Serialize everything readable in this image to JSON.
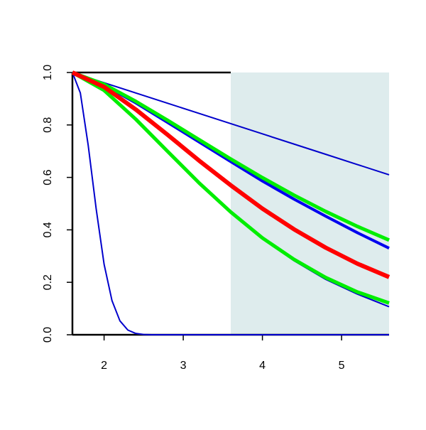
{
  "chart_data": {
    "type": "line",
    "x": [
      1.6,
      2.0,
      2.4,
      2.8,
      3.2,
      3.6,
      4.0,
      4.4,
      4.8,
      5.2,
      5.6
    ],
    "xlim": [
      1.6,
      5.6
    ],
    "xticks": [
      2,
      3,
      4,
      5
    ],
    "ylim": [
      0,
      1
    ],
    "yticks": [
      {
        "value": 0,
        "label": "0.0"
      },
      {
        "value": 0.2,
        "label": "0.2"
      },
      {
        "value": 0.4,
        "label": "0.4"
      },
      {
        "value": 0.6,
        "label": "0.6"
      },
      {
        "value": 0.8,
        "label": "0.8"
      },
      {
        "value": 1,
        "label": "1.0"
      }
    ],
    "shaded_region": {
      "xlim": [
        3.6,
        5.6
      ],
      "color": "#deeced"
    },
    "series": [
      {
        "color": "#0000cc",
        "width": 2,
        "values": [
          1,
          0.933,
          0.823,
          0.7,
          0.578,
          0.466,
          0.366,
          0.282,
          0.211,
          0.155,
          0.107
        ]
      },
      {
        "color": "#00ee00",
        "width": 5,
        "values": [
          1,
          0.932,
          0.822,
          0.7,
          0.579,
          0.468,
          0.369,
          0.287,
          0.218,
          0.163,
          0.121
        ]
      },
      {
        "color": "#0000cc",
        "width": 2,
        "x": [
          1.6,
          1.7,
          1.8,
          1.9,
          2.0,
          2.1,
          2.2,
          2.3,
          2.4,
          2.5,
          2.6,
          5.6
        ],
        "values": [
          1,
          0.922,
          0.721,
          0.48,
          0.269,
          0.13,
          0.053,
          0.018,
          0.005,
          0.001,
          0,
          0
        ]
      },
      {
        "color": "#0000cc",
        "width": 2,
        "values": [
          1,
          0.961,
          0.922,
          0.883,
          0.844,
          0.805,
          0.766,
          0.727,
          0.688,
          0.649,
          0.61
        ]
      },
      {
        "color": "#0000ee",
        "width": 4,
        "values": [
          1,
          0.952,
          0.884,
          0.81,
          0.735,
          0.66,
          0.586,
          0.517,
          0.452,
          0.389,
          0.33
        ]
      },
      {
        "color": "#00ee00",
        "width": 5,
        "values": [
          1,
          0.955,
          0.89,
          0.818,
          0.744,
          0.67,
          0.599,
          0.532,
          0.47,
          0.413,
          0.361
        ]
      },
      {
        "color": "#ff0000",
        "width": 6,
        "values": [
          1,
          0.945,
          0.859,
          0.763,
          0.664,
          0.57,
          0.481,
          0.402,
          0.332,
          0.271,
          0.22
        ]
      }
    ]
  }
}
